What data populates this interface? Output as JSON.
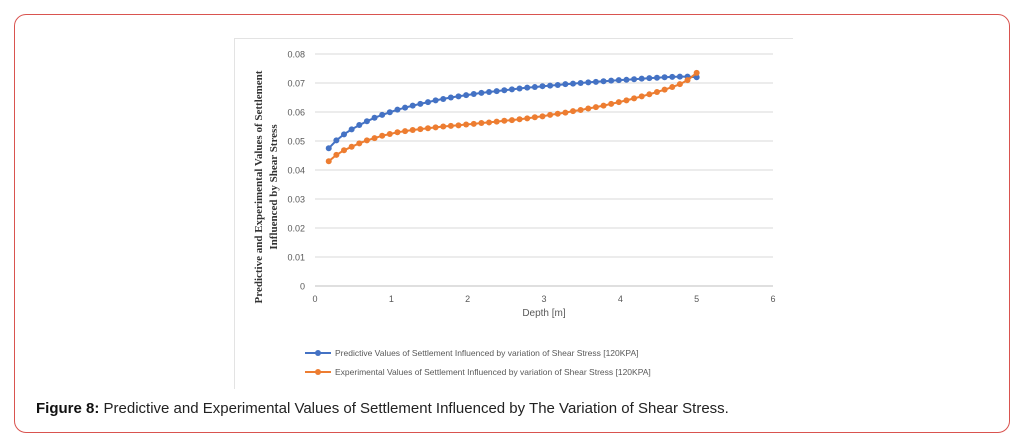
{
  "caption": {
    "label": "Figure 8:",
    "text": " Predictive and Experimental Values of Settlement Influenced by The Variation of Shear Stress."
  },
  "colors": {
    "predictive": "#4472C4",
    "experimental": "#ED7D31",
    "grid": "#d9d9d9",
    "axis_text": "#595959"
  },
  "chart_data": {
    "type": "line",
    "title": "",
    "xlabel": "Depth [m]",
    "ylabel": [
      "Predictive and Experimental Values of Settlement",
      "Influenced by Shear Stress"
    ],
    "xlim": [
      0,
      6
    ],
    "ylim": [
      0,
      0.08
    ],
    "xticks": [
      "0",
      "1",
      "2",
      "3",
      "4",
      "5",
      "6"
    ],
    "yticks": [
      "0",
      "0.01",
      "0.02",
      "0.03",
      "0.04",
      "0.05",
      "0.06",
      "0.07",
      "0.08"
    ],
    "grid": "horizontal",
    "legend_position": "bottom",
    "series": [
      {
        "name": "Predictive Values of Settlement Influenced by variation of Shear Stress [120KPA]",
        "color": "#4472C4",
        "x": [
          0.18,
          0.28,
          0.38,
          0.48,
          0.58,
          0.68,
          0.78,
          0.88,
          0.98,
          1.08,
          1.18,
          1.28,
          1.38,
          1.48,
          1.58,
          1.68,
          1.78,
          1.88,
          1.98,
          2.08,
          2.18,
          2.28,
          2.38,
          2.48,
          2.58,
          2.68,
          2.78,
          2.88,
          2.98,
          3.08,
          3.18,
          3.28,
          3.38,
          3.48,
          3.58,
          3.68,
          3.78,
          3.88,
          3.98,
          4.08,
          4.18,
          4.28,
          4.38,
          4.48,
          4.58,
          4.68,
          4.78,
          4.88,
          5.0
        ],
        "y": [
          0.0475,
          0.0502,
          0.0523,
          0.054,
          0.0555,
          0.0568,
          0.058,
          0.059,
          0.0599,
          0.0608,
          0.0615,
          0.0622,
          0.0628,
          0.0634,
          0.064,
          0.0645,
          0.065,
          0.0654,
          0.0658,
          0.0662,
          0.0666,
          0.0669,
          0.0672,
          0.0675,
          0.0678,
          0.0681,
          0.0684,
          0.0686,
          0.0689,
          0.0691,
          0.0693,
          0.0696,
          0.0698,
          0.07,
          0.0702,
          0.0704,
          0.0706,
          0.0708,
          0.071,
          0.0711,
          0.0713,
          0.0715,
          0.0717,
          0.0718,
          0.072,
          0.0721,
          0.0722,
          0.0722,
          0.072
        ]
      },
      {
        "name": "Experimental  Values of Settlement Influenced by variation of Shear Stress [120KPA]",
        "color": "#ED7D31",
        "x": [
          0.18,
          0.28,
          0.38,
          0.48,
          0.58,
          0.68,
          0.78,
          0.88,
          0.98,
          1.08,
          1.18,
          1.28,
          1.38,
          1.48,
          1.58,
          1.68,
          1.78,
          1.88,
          1.98,
          2.08,
          2.18,
          2.28,
          2.38,
          2.48,
          2.58,
          2.68,
          2.78,
          2.88,
          2.98,
          3.08,
          3.18,
          3.28,
          3.38,
          3.48,
          3.58,
          3.68,
          3.78,
          3.88,
          3.98,
          4.08,
          4.18,
          4.28,
          4.38,
          4.48,
          4.58,
          4.68,
          4.78,
          4.88,
          5.0
        ],
        "y": [
          0.043,
          0.0452,
          0.0468,
          0.048,
          0.0492,
          0.0502,
          0.051,
          0.0518,
          0.0524,
          0.053,
          0.0534,
          0.0538,
          0.0541,
          0.0544,
          0.0547,
          0.055,
          0.0552,
          0.0554,
          0.0557,
          0.0559,
          0.0562,
          0.0564,
          0.0567,
          0.057,
          0.0572,
          0.0575,
          0.0578,
          0.0582,
          0.0585,
          0.059,
          0.0594,
          0.0598,
          0.0603,
          0.0607,
          0.0612,
          0.0617,
          0.0622,
          0.0628,
          0.0634,
          0.064,
          0.0647,
          0.0654,
          0.0661,
          0.0669,
          0.0677,
          0.0686,
          0.0696,
          0.071,
          0.0735
        ]
      }
    ]
  }
}
